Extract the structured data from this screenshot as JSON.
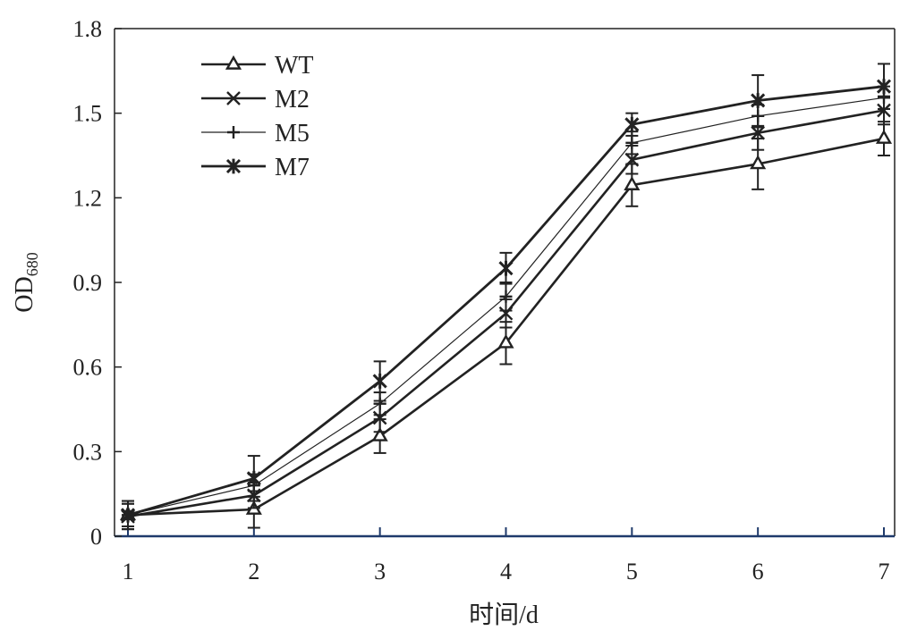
{
  "chart_data": {
    "type": "line",
    "title": "",
    "xlabel": "时间/d",
    "ylabel_main": "OD",
    "ylabel_sub": "680",
    "x": [
      1,
      2,
      3,
      4,
      5,
      6,
      7
    ],
    "xlim": [
      1,
      7
    ],
    "ylim": [
      0,
      1.8
    ],
    "yticks": [
      "0",
      "0.3",
      "0.6",
      "0.9",
      "1.2",
      "1.5",
      "1.8"
    ],
    "ytick_values": [
      0,
      0.3,
      0.6,
      0.9,
      1.2,
      1.5,
      1.8
    ],
    "xticks": [
      "1",
      "2",
      "3",
      "4",
      "5",
      "6",
      "7"
    ],
    "grid": false,
    "legend_position": "top-left",
    "series": [
      {
        "name": "WT",
        "marker": "triangle",
        "values": [
          0.075,
          0.095,
          0.355,
          0.685,
          1.245,
          1.32,
          1.41
        ],
        "errors": [
          0.05,
          0.065,
          0.06,
          0.075,
          0.075,
          0.09,
          0.06
        ]
      },
      {
        "name": "M2",
        "marker": "x",
        "values": [
          0.07,
          0.145,
          0.42,
          0.79,
          1.335,
          1.43,
          1.51
        ],
        "errors": [
          0.045,
          0.045,
          0.05,
          0.05,
          0.05,
          0.06,
          0.05
        ]
      },
      {
        "name": "M5",
        "marker": "plus",
        "values": [
          0.075,
          0.18,
          0.47,
          0.85,
          1.395,
          1.49,
          1.555
        ],
        "errors": [
          0.04,
          0.04,
          0.04,
          0.05,
          0.04,
          0.04,
          0.04
        ]
      },
      {
        "name": "M7",
        "marker": "star",
        "values": [
          0.075,
          0.205,
          0.55,
          0.95,
          1.46,
          1.545,
          1.595
        ],
        "errors": [
          0.05,
          0.08,
          0.07,
          0.055,
          0.04,
          0.09,
          0.08
        ]
      }
    ]
  }
}
